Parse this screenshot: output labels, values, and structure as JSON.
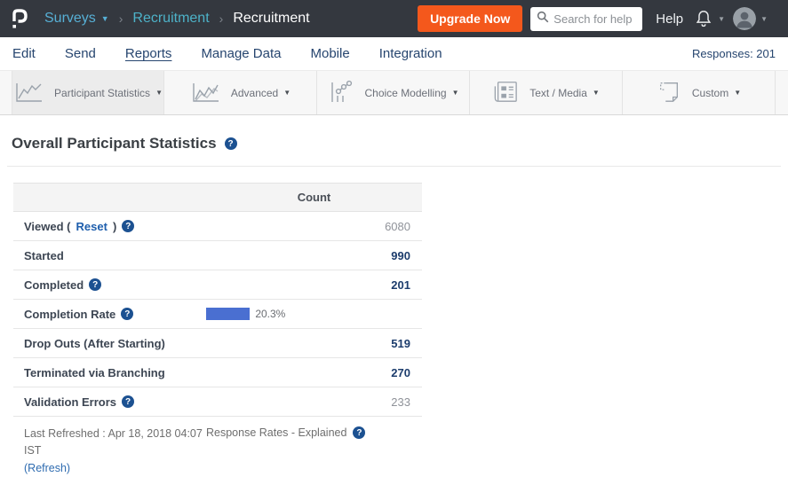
{
  "topbar": {
    "breadcrumb": {
      "surveys_label": "Surveys",
      "separator": "›",
      "parent_label": "Recruitment",
      "current_label": "Recruitment"
    },
    "upgrade_label": "Upgrade Now",
    "search_placeholder": "Search for help",
    "help_label": "Help"
  },
  "nav": {
    "items": [
      {
        "label": "Edit",
        "active": false
      },
      {
        "label": "Send",
        "active": false
      },
      {
        "label": "Reports",
        "active": true
      },
      {
        "label": "Manage Data",
        "active": false
      },
      {
        "label": "Mobile",
        "active": false
      },
      {
        "label": "Integration",
        "active": false
      }
    ],
    "responses_label": "Responses: 201"
  },
  "report_tabs": {
    "items": [
      {
        "label": "Participant Statistics",
        "icon": "line-chart-icon",
        "active": true
      },
      {
        "label": "Advanced",
        "icon": "multi-line-chart-icon",
        "active": false
      },
      {
        "label": "Choice Modelling",
        "icon": "scatter-chart-icon",
        "active": false
      },
      {
        "label": "Text / Media",
        "icon": "newspaper-icon",
        "active": false
      },
      {
        "label": "Custom",
        "icon": "page-icon",
        "active": false
      }
    ]
  },
  "main": {
    "title": "Overall Participant Statistics",
    "table": {
      "count_header": "Count",
      "rows": [
        {
          "label": "Viewed (",
          "reset_label": "Reset",
          "label_close": ")",
          "value": "6080"
        },
        {
          "label": "Started",
          "value": "990"
        },
        {
          "label": "Completed",
          "value": "201"
        },
        {
          "label": "Completion Rate",
          "bar_percent": 20.3,
          "bar_label": "20.3%"
        },
        {
          "label": "Drop Outs (After Starting)",
          "value": "519"
        },
        {
          "label": "Terminated via Branching",
          "value": "270"
        },
        {
          "label": "Validation Errors",
          "value": "233"
        }
      ]
    },
    "footer": {
      "last_refreshed": "Last Refreshed : Apr 18, 2018 04:07 IST",
      "refresh_label": "(Refresh)",
      "response_rates_label": "Response Rates - Explained"
    }
  },
  "colors": {
    "topbar_bg": "#34383f",
    "upgrade_orange": "#f4581c",
    "nav_navy": "#26456f",
    "breadcrumb_blue": "#57b0d6",
    "breadcrumb_teal": "#4db2c8",
    "bar_blue": "#4a6fd1",
    "help_icon_navy": "#1c5191",
    "link_blue": "#1f5fad"
  }
}
